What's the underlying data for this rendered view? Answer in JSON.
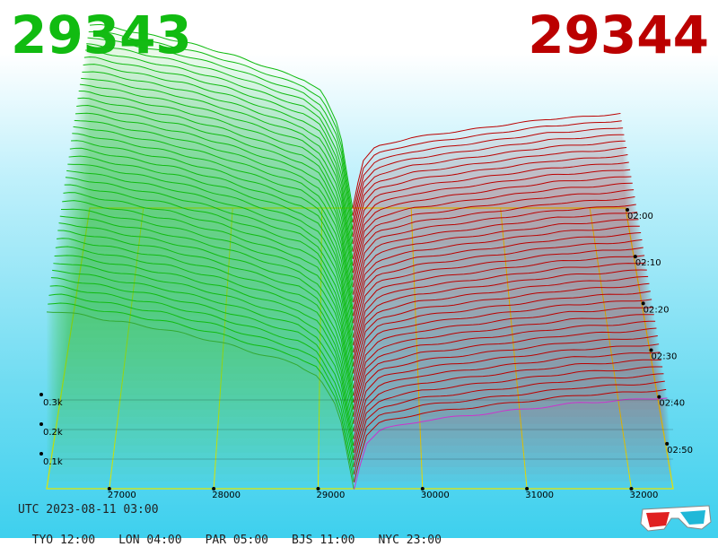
{
  "header": {
    "bid_price": "29343",
    "ask_price": "29344"
  },
  "footer": {
    "utc": "UTC 2023-08-11 03:00",
    "zones": [
      "TYO 12:00",
      "LON 04:00",
      "PAR 05:00",
      "BJS 11:00",
      "NYC 23:00"
    ]
  },
  "colors": {
    "bid": "#11bb11",
    "ask": "#bb0000",
    "grid": "#e8e800",
    "latest_bid": "#33aa33",
    "latest_ask": "#cc33cc"
  },
  "icons": [
    "3d-glasses-icon"
  ],
  "chart_data": {
    "type": "area",
    "title": "",
    "xlabel": "",
    "ylabel": "",
    "x_ticks": [
      27000,
      28000,
      29000,
      30000,
      31000,
      32000
    ],
    "x_tick_labels": [
      "27000",
      "28000",
      "29000",
      "30000",
      "31000",
      "32000"
    ],
    "xlim": [
      26400,
      32400
    ],
    "y_ticks_labels": [
      "0.1k",
      "0.2k",
      "0.3k"
    ],
    "y_ticks": [
      100,
      200,
      300
    ],
    "z_ticks_labels": [
      "02:00",
      "02:10",
      "02:20",
      "02:30",
      "02:40",
      "02:50"
    ],
    "z_ticks": [
      0,
      10,
      20,
      30,
      40,
      50
    ],
    "zlim": [
      0,
      60
    ],
    "mid_price": 29343.5,
    "snapshot_count": 40,
    "depth_max": 800,
    "bid_depth": {
      "prices": [
        29343,
        29200,
        29000,
        28800,
        28500,
        28000,
        27500,
        27000,
        26500
      ],
      "cumulative": [
        0,
        260,
        380,
        420,
        450,
        500,
        540,
        570,
        600
      ]
    },
    "ask_depth": {
      "prices": [
        29344,
        29450,
        29600,
        30000,
        30500,
        31000,
        31500,
        32000,
        32400
      ],
      "cumulative": [
        0,
        150,
        200,
        230,
        250,
        270,
        290,
        300,
        310
      ]
    }
  }
}
